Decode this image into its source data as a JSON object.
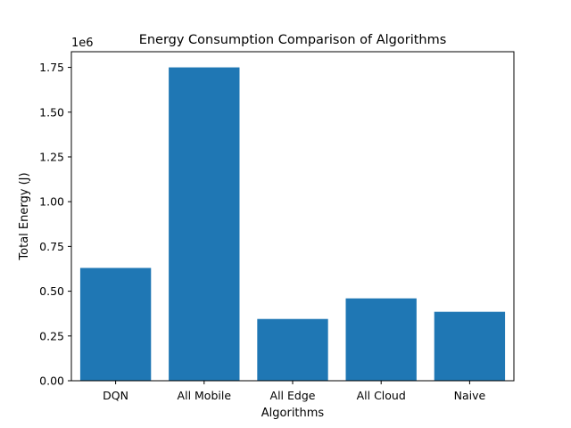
{
  "chart_data": {
    "type": "bar",
    "title": "Energy Consumption Comparison of Algorithms",
    "xlabel": "Algorithms",
    "ylabel": "Total Energy (J)",
    "y_scale_label": "1e6",
    "categories": [
      "DQN",
      "All Mobile",
      "All Edge",
      "All Cloud",
      "Naive"
    ],
    "values": [
      630000,
      1750000,
      345000,
      460000,
      385000
    ],
    "ylim": [
      0,
      1837500
    ],
    "yticks": [
      0,
      250000,
      500000,
      750000,
      1000000,
      1250000,
      1500000,
      1750000
    ],
    "ytick_labels": [
      "0.00",
      "0.25",
      "0.50",
      "0.75",
      "1.00",
      "1.25",
      "1.50",
      "1.75"
    ],
    "grid": false,
    "bar_color": "#1f77b4"
  }
}
